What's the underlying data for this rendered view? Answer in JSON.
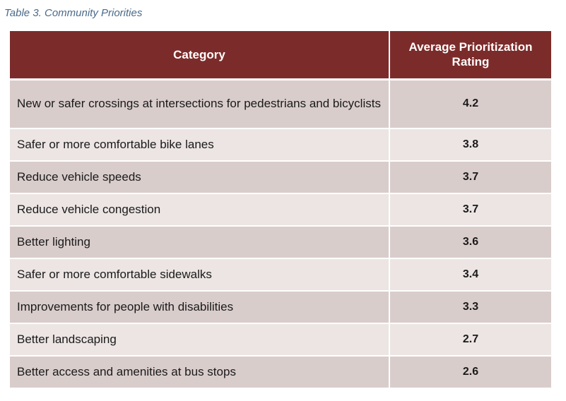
{
  "caption": "Table 3. Community Priorities",
  "table": {
    "headers": {
      "category": "Category",
      "rating": "Average Prioritization Rating"
    },
    "rows": [
      {
        "category": "New or safer crossings at intersections for pedestrians and bicyclists",
        "rating": "4.2"
      },
      {
        "category": "Safer or more comfortable bike lanes",
        "rating": "3.8"
      },
      {
        "category": "Reduce vehicle speeds",
        "rating": "3.7"
      },
      {
        "category": "Reduce vehicle congestion",
        "rating": "3.7"
      },
      {
        "category": "Better lighting",
        "rating": "3.6"
      },
      {
        "category": "Safer or more comfortable sidewalks",
        "rating": "3.4"
      },
      {
        "category": "Improvements for people with disabilities",
        "rating": "3.3"
      },
      {
        "category": "Better landscaping",
        "rating": "2.7"
      },
      {
        "category": "Better access and amenities at bus stops",
        "rating": "2.6"
      }
    ]
  },
  "colors": {
    "header_bg": "#7b2c2a",
    "row_odd_bg": "#d9cdcc",
    "row_even_bg": "#ece5e4",
    "caption_text": "#4a6a8a"
  }
}
